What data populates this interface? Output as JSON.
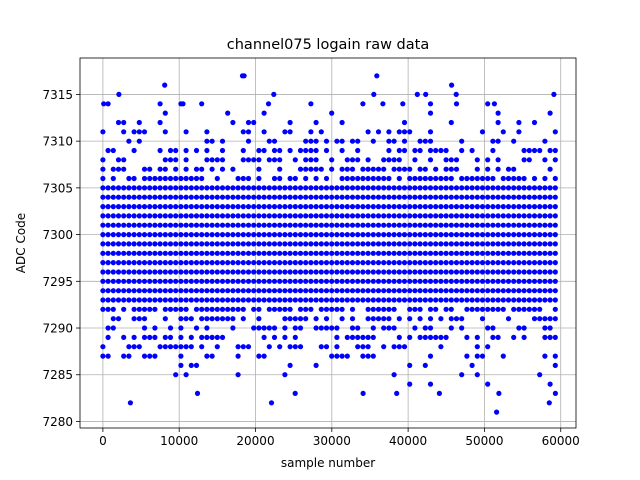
{
  "chart_data": {
    "type": "scatter",
    "title": "channel075 logain raw data",
    "xlabel": "sample number",
    "ylabel": "ADC Code",
    "xlim": [
      -3000,
      62000
    ],
    "ylim": [
      7279.3,
      7318.9
    ],
    "xticks": [
      0,
      10000,
      20000,
      30000,
      40000,
      50000,
      60000
    ],
    "xtick_labels": [
      "0",
      "10000",
      "20000",
      "30000",
      "40000",
      "50000",
      "60000"
    ],
    "yticks": [
      7280,
      7285,
      7290,
      7295,
      7300,
      7305,
      7310,
      7315
    ],
    "ytick_labels": [
      "7280",
      "7285",
      "7290",
      "7295",
      "7300",
      "7305",
      "7310",
      "7315"
    ],
    "grid": true,
    "marker": "circle",
    "color": "#0000ff",
    "x_range": [
      0,
      59300
    ],
    "n_samples": 59300,
    "dense_band": [
      7287,
      7311
    ],
    "sparse_band": [
      7284,
      7314
    ],
    "outliers": [
      {
        "x": 100,
        "y": 7314
      },
      {
        "x": 2100,
        "y": 7315
      },
      {
        "x": 3600,
        "y": 7282
      },
      {
        "x": 8100,
        "y": 7316
      },
      {
        "x": 10500,
        "y": 7314
      },
      {
        "x": 12400,
        "y": 7283
      },
      {
        "x": 18300,
        "y": 7317
      },
      {
        "x": 18500,
        "y": 7317
      },
      {
        "x": 21700,
        "y": 7314
      },
      {
        "x": 22100,
        "y": 7282
      },
      {
        "x": 22400,
        "y": 7315
      },
      {
        "x": 25200,
        "y": 7283
      },
      {
        "x": 34100,
        "y": 7283
      },
      {
        "x": 35500,
        "y": 7315
      },
      {
        "x": 35900,
        "y": 7317
      },
      {
        "x": 36700,
        "y": 7314
      },
      {
        "x": 38500,
        "y": 7283
      },
      {
        "x": 39300,
        "y": 7314
      },
      {
        "x": 41200,
        "y": 7315
      },
      {
        "x": 42300,
        "y": 7315
      },
      {
        "x": 44100,
        "y": 7283
      },
      {
        "x": 45700,
        "y": 7316
      },
      {
        "x": 46300,
        "y": 7315
      },
      {
        "x": 51300,
        "y": 7314
      },
      {
        "x": 51600,
        "y": 7281
      },
      {
        "x": 51900,
        "y": 7283
      },
      {
        "x": 58500,
        "y": 7282
      },
      {
        "x": 59100,
        "y": 7315
      },
      {
        "x": 59300,
        "y": 7283
      }
    ]
  }
}
